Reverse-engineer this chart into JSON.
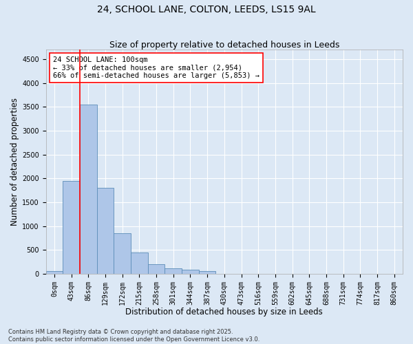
{
  "title": "24, SCHOOL LANE, COLTON, LEEDS, LS15 9AL",
  "subtitle": "Size of property relative to detached houses in Leeds",
  "xlabel": "Distribution of detached houses by size in Leeds",
  "ylabel": "Number of detached properties",
  "categories": [
    "0sqm",
    "43sqm",
    "86sqm",
    "129sqm",
    "172sqm",
    "215sqm",
    "258sqm",
    "301sqm",
    "344sqm",
    "387sqm",
    "430sqm",
    "473sqm",
    "516sqm",
    "559sqm",
    "602sqm",
    "645sqm",
    "688sqm",
    "731sqm",
    "774sqm",
    "817sqm",
    "860sqm"
  ],
  "bar_heights": [
    50,
    1950,
    3550,
    1800,
    850,
    450,
    200,
    120,
    90,
    60,
    0,
    0,
    0,
    0,
    0,
    0,
    0,
    0,
    0,
    0,
    0
  ],
  "bar_color": "#aec6e8",
  "bar_edge_color": "#5b8db8",
  "vline_color": "red",
  "vline_x": 2,
  "annotation_text": "24 SCHOOL LANE: 100sqm\n← 33% of detached houses are smaller (2,954)\n66% of semi-detached houses are larger (5,853) →",
  "ylim": [
    0,
    4700
  ],
  "yticks": [
    0,
    500,
    1000,
    1500,
    2000,
    2500,
    3000,
    3500,
    4000,
    4500
  ],
  "background_color": "#dce8f5",
  "plot_background_color": "#dce8f5",
  "grid_color": "#ffffff",
  "footer_text": "Contains HM Land Registry data © Crown copyright and database right 2025.\nContains public sector information licensed under the Open Government Licence v3.0.",
  "title_fontsize": 10,
  "subtitle_fontsize": 9,
  "axis_label_fontsize": 8.5,
  "tick_fontsize": 7,
  "annotation_fontsize": 7.5,
  "footer_fontsize": 6
}
